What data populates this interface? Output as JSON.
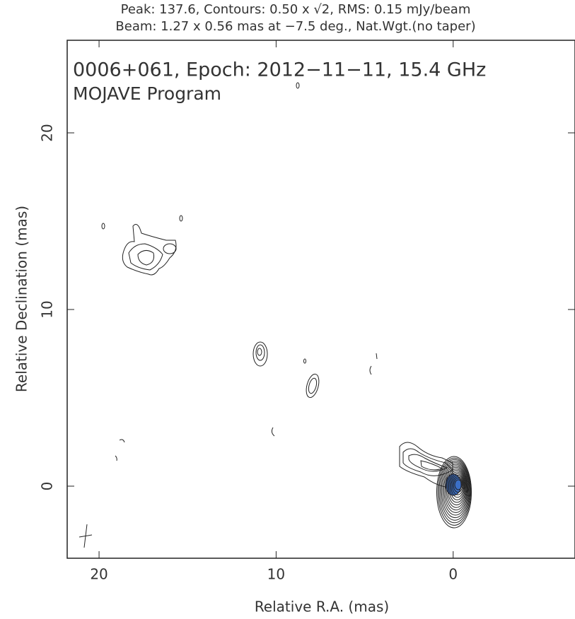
{
  "chart_data": {
    "type": "contour",
    "header": [
      "Peak: 137.6, Contours: 0.50 x √2, RMS: 0.15 mJy/beam",
      "Beam: 1.27 x 0.56 mas at −7.5 deg., Nat.Wgt.(no taper)"
    ],
    "title": "0006+061, Epoch: 2012−11−11, 15.4 GHz",
    "subtitle": "MOJAVE Program",
    "xlabel": "Relative R.A. (mas)",
    "ylabel": "Relative Declination (mas)",
    "xlim": [
      21.8,
      -6.88
    ],
    "ylim": [
      -4.08,
      25.24
    ],
    "xticks": [
      20,
      10,
      0
    ],
    "yticks": [
      0,
      10,
      20
    ]
  }
}
